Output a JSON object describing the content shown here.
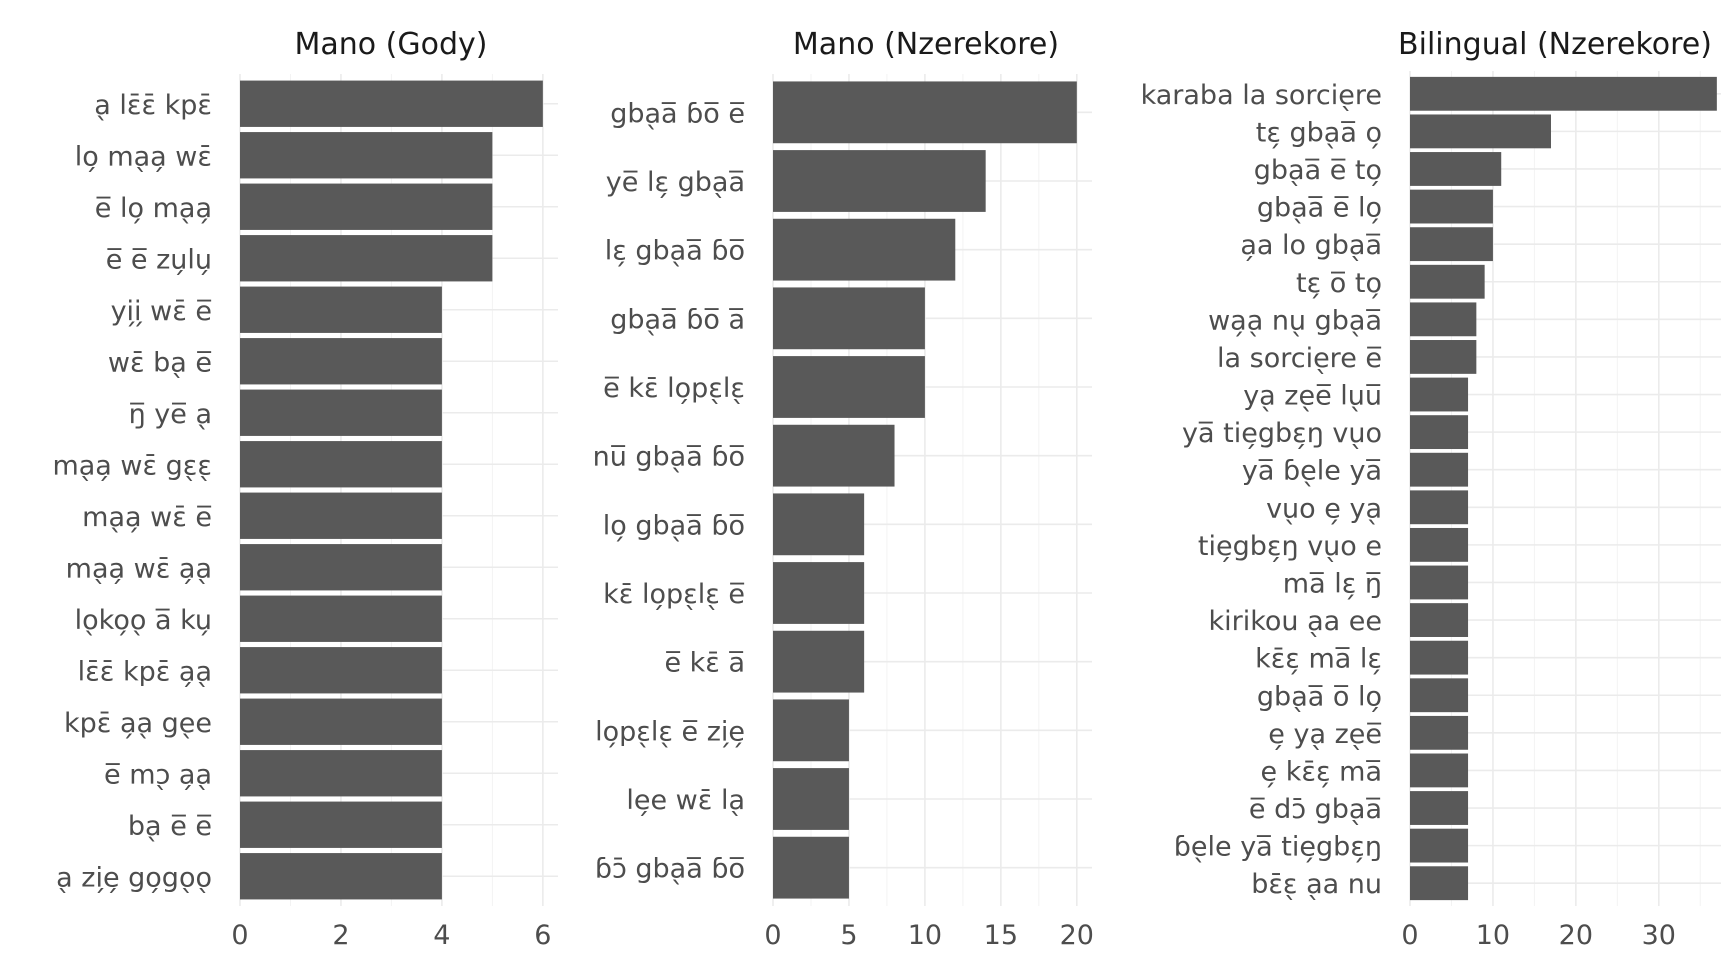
{
  "chart_data": [
    {
      "type": "bar",
      "orientation": "horizontal",
      "title": "Mano (Gody)",
      "categories": [
        "a̖ lɛ̄ɛ̄ kpɛ̄",
        "lo̗ ma̖a̗ wɛ̄",
        "e̅ lo̗ ma̖a̗",
        "e̅ e̅ zu̗lu̗",
        "yi̗i̗ wɛ̄ e̅",
        "wɛ̄ ba̖ e̅",
        "ŋ̅ ye̅ a̖",
        "ma̖a̗ wɛ̄ gɛ̖ɛ̖",
        "ma̖a̗ wɛ̄ e̅",
        "ma̖a̗ wɛ̄ a̗a̖",
        "lo̖ko̗o̖ a̅ ku̗",
        "lɛ̄ɛ̄ kpɛ̄ a̗a̖",
        "kpɛ̄ a̗a̖ ge̖e",
        "e̅ mɔ̖ a̗a̖",
        "ba̖ e̅ e̅",
        "a̖ zi̗e̗ go̗go̖o̖"
      ],
      "values": [
        6,
        5,
        5,
        5,
        4,
        4,
        4,
        4,
        4,
        4,
        4,
        4,
        4,
        4,
        4,
        4
      ],
      "xlim": [
        0,
        6.3
      ],
      "xticks": [
        0,
        2,
        4,
        6
      ],
      "minor_ticks": [
        1,
        3,
        5
      ],
      "grid": true
    },
    {
      "type": "bar",
      "orientation": "horizontal",
      "title": "Mano (Nzerekore)",
      "categories": [
        "gba̖a̅ ɓo̅ e̅",
        "ye̅ lɛ̗ gba̖a̅",
        "lɛ̗ gba̖a̅ ɓo̅",
        "gba̖a̅ ɓo̅ a̅",
        "e̅ kɛ̄ lo̗pɛ̖lɛ̖",
        "nu̅ gba̖a̅ ɓo̅",
        "lo̗ gba̖a̅ ɓo̅",
        "kɛ̄ lo̗pɛ̖lɛ̖ e̅",
        "e̅ kɛ̄ a̅",
        "lo̗pɛ̖lɛ̖ e̅ zi̗e̗",
        "le̗e wɛ̄ la̖",
        "ɓɔ̄ gba̖a̅ ɓo̅"
      ],
      "values": [
        20,
        14,
        12,
        10,
        10,
        8,
        6,
        6,
        6,
        5,
        5,
        5
      ],
      "xlim": [
        0,
        21
      ],
      "xticks": [
        0,
        5,
        10,
        15,
        20
      ],
      "minor_ticks": [
        2.5,
        7.5,
        12.5,
        17.5
      ],
      "grid": true
    },
    {
      "type": "bar",
      "orientation": "horizontal",
      "title": "Bilingual (Nzerekore)",
      "categories": [
        "karaba la sorcie̖re",
        "tɛ̗ gba̖a̅ o̗",
        "gba̖a̅ e̅ to̗",
        "gba̖a̅ e̅ lo̗",
        "a̗a lo gba̖a̅",
        "tɛ̗ o̅ to̗",
        "wa̗a̖ nu̖ gba̖a̅",
        "la sorcie̖re e̅",
        "ya̖ ze̖e̅ lu̖u̅",
        "ya̅ tie̗gbɛ̗ŋ vu̖o",
        "ya̅ ɓe̖le ya̅",
        "vu̖o e̗ ya̖",
        "tie̗gbɛ̗ŋ vu̖o e",
        "ma̅ lɛ̗ ŋ̅",
        "kirikou a̖a ee",
        "kɛ̄ɛ̗ ma̅ lɛ̗",
        "gba̖a̅ o̅ lo̗",
        "e̗ ya̖ ze̖e̅",
        "e̗ kɛ̄ɛ̗ ma̅",
        "e̅ dɔ̄ gba̖a̅",
        "ɓe̖le ya̅ tie̗gbɛ̗ŋ",
        "bɛ̄ɛ̖ a̖a nu"
      ],
      "values": [
        37,
        17,
        11,
        10,
        10,
        9,
        8,
        8,
        7,
        7,
        7,
        7,
        7,
        7,
        7,
        7,
        7,
        7,
        7,
        7,
        7,
        7
      ],
      "xlim": [
        0,
        37.5
      ],
      "xticks": [
        0,
        10,
        20,
        30
      ],
      "minor_ticks": [
        5,
        15,
        25,
        35
      ],
      "grid": true
    }
  ],
  "colors": {
    "bar": "#595959",
    "grid_major": "#ebebeb",
    "grid_minor": "#f3f3f3",
    "label": "#4d4d4d",
    "title": "#1a1a1a"
  }
}
